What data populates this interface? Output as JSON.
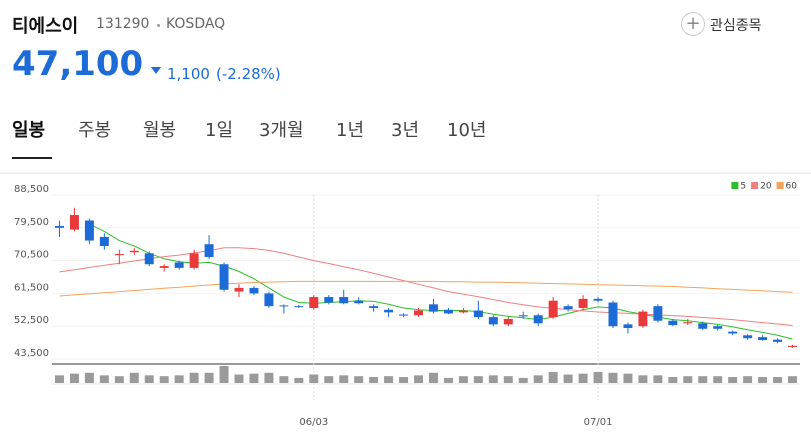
{
  "header": {
    "name": "티에스이",
    "code": "131290",
    "market": "KOSDAQ",
    "button": "관심종목",
    "price": "47,100",
    "change": "1,100",
    "change_pct": "(-2.28%)"
  },
  "tabs": [
    "일봉",
    "주봉",
    "월봉",
    "1일",
    "3개월",
    "1년",
    "3년",
    "10년"
  ],
  "chart_data": {
    "type": "candlestick",
    "categories": [
      null,
      null,
      null,
      null,
      null,
      null,
      null,
      null,
      null,
      null,
      null,
      null,
      null,
      null,
      null,
      null,
      null,
      "06/03",
      null,
      null,
      null,
      null,
      null,
      null,
      null,
      null,
      null,
      null,
      null,
      null,
      null,
      null,
      null,
      null,
      null,
      null,
      "07/01",
      null,
      null,
      null,
      null,
      null,
      null,
      null,
      null,
      null,
      null,
      null,
      null,
      null
    ],
    "open": [
      80000,
      79000,
      81500,
      77000,
      72000,
      72800,
      72500,
      68500,
      70000,
      68500,
      75000,
      69500,
      62000,
      63000,
      61500,
      58200,
      58000,
      57500,
      60500,
      60500,
      59500,
      58000,
      57000,
      55700,
      55500,
      58500,
      57000,
      56300,
      56800,
      55000,
      53000,
      55500,
      55500,
      55000,
      58000,
      57500,
      60000,
      59000,
      53000,
      52500,
      58000,
      54000,
      53300,
      53300,
      52500,
      51000,
      50000,
      49500,
      48800,
      46800
    ],
    "high": [
      81500,
      85000,
      82000,
      78000,
      73500,
      74000,
      73000,
      69500,
      70500,
      73500,
      77500,
      70000,
      64000,
      63500,
      62000,
      58500,
      58300,
      61000,
      61000,
      62500,
      60500,
      58500,
      57500,
      56000,
      57500,
      60000,
      57500,
      57500,
      59500,
      55500,
      55000,
      56500,
      56000,
      60500,
      58500,
      61000,
      60500,
      59500,
      53500,
      57000,
      58500,
      54500,
      54500,
      53800,
      53000,
      51300,
      50300,
      50000,
      49200,
      47400
    ],
    "low": [
      77000,
      78500,
      75000,
      73500,
      69500,
      72000,
      69000,
      67500,
      68000,
      68000,
      71000,
      62000,
      60500,
      61000,
      57500,
      56000,
      57500,
      57000,
      58500,
      58500,
      58500,
      56500,
      55000,
      55000,
      55000,
      56000,
      55800,
      56000,
      54500,
      52500,
      52500,
      54500,
      52500,
      54500,
      56500,
      57000,
      59000,
      52000,
      50500,
      52000,
      53500,
      52500,
      52800,
      51500,
      51300,
      50000,
      48800,
      48500,
      47800,
      46600
    ],
    "close": [
      79500,
      83000,
      76000,
      74500,
      72300,
      73200,
      69500,
      69000,
      68500,
      72500,
      71500,
      62500,
      63000,
      61500,
      58000,
      58000,
      57800,
      60500,
      59000,
      58800,
      58800,
      57500,
      56300,
      55500,
      56800,
      56500,
      56000,
      56800,
      55000,
      53000,
      54500,
      55200,
      53300,
      59500,
      57200,
      60000,
      59500,
      52500,
      52000,
      56500,
      54000,
      52800,
      53600,
      51800,
      51800,
      50500,
      49200,
      48700,
      48200,
      47100
    ],
    "up_color": "#e8393b",
    "down_color": "#1d6bd6",
    "series": [
      {
        "name": "5",
        "color": "#2cbf2c",
        "values": [
          null,
          null,
          80500,
          78500,
          76000,
          74500,
          72500,
          71000,
          70200,
          69800,
          70000,
          69000,
          67500,
          65500,
          63000,
          60500,
          59000,
          58800,
          59000,
          59200,
          59500,
          59300,
          58500,
          57500,
          57000,
          56800,
          56800,
          56800,
          56500,
          55800,
          55200,
          54800,
          54300,
          55000,
          56000,
          57000,
          57800,
          57500,
          56500,
          55800,
          55000,
          54300,
          54000,
          53500,
          53000,
          52300,
          51500,
          50800,
          50000,
          49000
        ]
      },
      {
        "name": "20",
        "color": "#f08080",
        "values": [
          67400,
          68000,
          68600,
          69200,
          69800,
          70400,
          71000,
          71600,
          72000,
          72600,
          73200,
          74000,
          74000,
          73800,
          73300,
          72500,
          71500,
          70500,
          69700,
          68800,
          68000,
          67000,
          66000,
          65000,
          64000,
          63000,
          62000,
          61300,
          60600,
          59800,
          59000,
          58400,
          57800,
          57400,
          57000,
          56700,
          56400,
          56200,
          56000,
          55800,
          55600,
          55400,
          55200,
          54900,
          54600,
          54300,
          53900,
          53500,
          53100,
          52700
        ]
      },
      {
        "name": "60",
        "color": "#f5a25a",
        "values": [
          60800,
          61100,
          61400,
          61700,
          62000,
          62300,
          62600,
          62900,
          63200,
          63500,
          63800,
          64100,
          64300,
          64500,
          64600,
          64700,
          64800,
          64800,
          64800,
          64800,
          64800,
          64800,
          64800,
          64800,
          64800,
          64800,
          64700,
          64700,
          64600,
          64600,
          64500,
          64400,
          64300,
          64200,
          64100,
          64000,
          63900,
          63800,
          63700,
          63600,
          63500,
          63400,
          63200,
          63000,
          62800,
          62600,
          62400,
          62200,
          62000,
          61800
        ]
      }
    ],
    "volume": [
      45,
      55,
      60,
      45,
      40,
      60,
      45,
      40,
      45,
      60,
      60,
      100,
      50,
      55,
      60,
      40,
      30,
      50,
      40,
      45,
      40,
      35,
      40,
      35,
      45,
      60,
      30,
      40,
      40,
      45,
      40,
      30,
      45,
      65,
      50,
      55,
      65,
      60,
      55,
      45,
      45,
      35,
      40,
      40,
      40,
      35,
      40,
      35,
      35,
      40
    ],
    "volume_color": "#9a9a9a",
    "volume_ylim": [
      0,
      100
    ],
    "ylim": [
      43500,
      88500
    ],
    "yticks": [
      {
        "value": 43500,
        "label": "43,500"
      },
      {
        "value": 52500,
        "label": "52,500"
      },
      {
        "value": 61500,
        "label": "61,500"
      },
      {
        "value": 70500,
        "label": "70,500"
      },
      {
        "value": 79500,
        "label": "79,500"
      },
      {
        "value": 88500,
        "label": "88,500"
      }
    ],
    "grid": true,
    "legend": "top-right"
  }
}
